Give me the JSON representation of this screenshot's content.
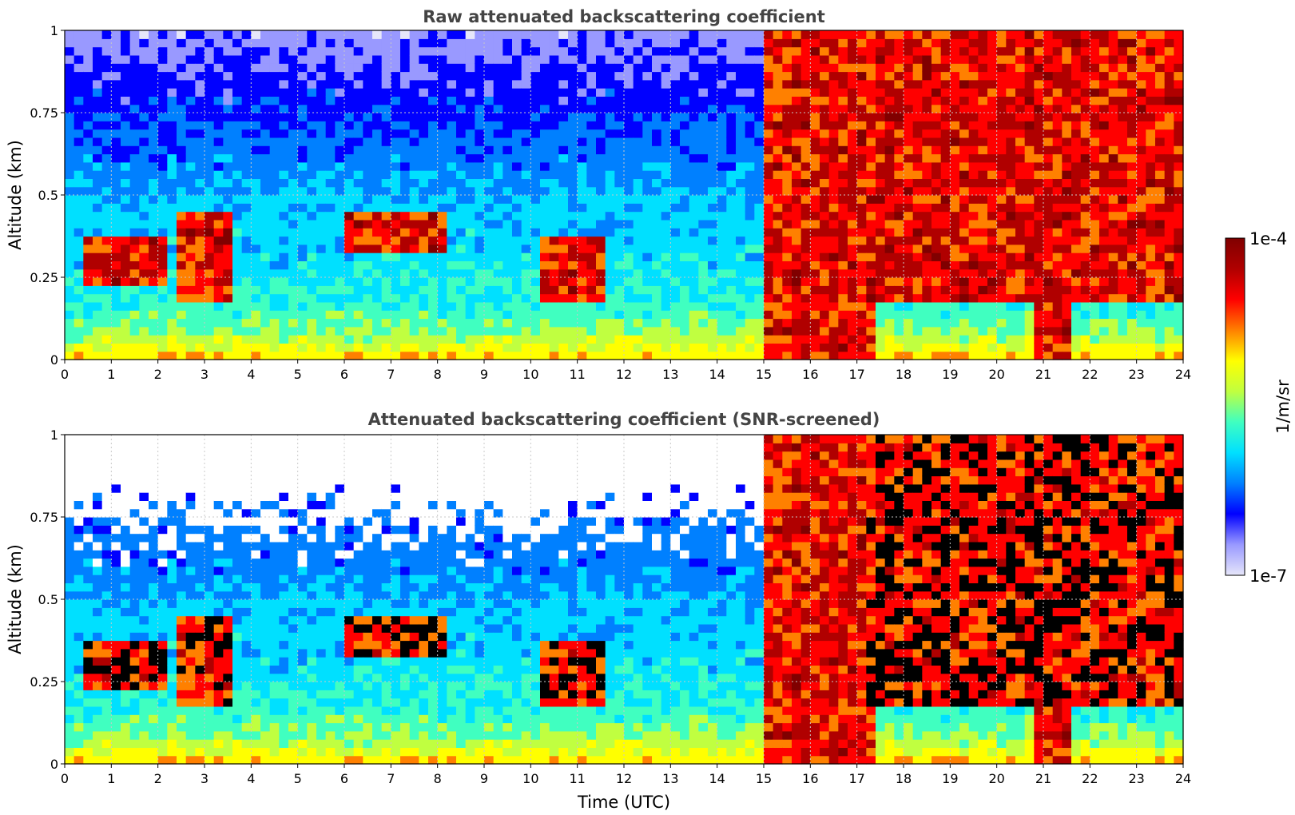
{
  "figure": {
    "xlabel": "Time (UTC)",
    "colorbar_label": "1/m/sr",
    "colorbar_ticks": [
      "1e-4",
      "1e-7"
    ],
    "colormap": [
      "#e6e6fa",
      "#9999ff",
      "#0000ff",
      "#0080ff",
      "#00e0ff",
      "#40ffc0",
      "#c0ff40",
      "#ffff00",
      "#ff8000",
      "#ff0000",
      "#b00000",
      "#800000"
    ]
  },
  "chart_data": [
    {
      "type": "heatmap",
      "title": "Raw attenuated backscattering coefficient",
      "xlabel": "",
      "ylabel": "Altitude (km)",
      "xlim": [
        0,
        24
      ],
      "ylim": [
        0,
        1
      ],
      "xticks": [
        0,
        1,
        2,
        3,
        4,
        5,
        6,
        7,
        8,
        9,
        10,
        11,
        12,
        13,
        14,
        15,
        16,
        17,
        18,
        19,
        20,
        21,
        22,
        23,
        24
      ],
      "yticks": [
        0,
        0.25,
        0.5,
        0.75,
        1
      ],
      "ytick_labels": [
        "0",
        "0.25",
        "0.5",
        "0.75",
        "1"
      ],
      "grid": true,
      "colorscale": "log",
      "clim": [
        "1e-7",
        "1e-4"
      ],
      "features": [
        {
          "x": [
            0.5,
            2.1
          ],
          "y": [
            0.22,
            0.38
          ],
          "level": "high"
        },
        {
          "x": [
            2.5,
            3.5
          ],
          "y": [
            0.18,
            0.45
          ],
          "level": "high"
        },
        {
          "x": [
            6.0,
            8.2
          ],
          "y": [
            0.32,
            0.45
          ],
          "level": "high"
        },
        {
          "x": [
            10.2,
            11.5
          ],
          "y": [
            0.18,
            0.38
          ],
          "level": "high"
        },
        {
          "x": [
            15.1,
            17.3
          ],
          "y": [
            0.0,
            1.0
          ],
          "level": "high"
        },
        {
          "x": [
            17.3,
            24.0
          ],
          "y": [
            0.18,
            1.0
          ],
          "level": "high"
        },
        {
          "x": [
            20.9,
            21.6
          ],
          "y": [
            0.0,
            0.6
          ],
          "level": "high"
        }
      ]
    },
    {
      "type": "heatmap",
      "title": "Attenuated backscattering coefficient (SNR-screened)",
      "xlabel": "Time (UTC)",
      "ylabel": "Altitude (km)",
      "xlim": [
        0,
        24
      ],
      "ylim": [
        0,
        1
      ],
      "xticks": [
        0,
        1,
        2,
        3,
        4,
        5,
        6,
        7,
        8,
        9,
        10,
        11,
        12,
        13,
        14,
        15,
        16,
        17,
        18,
        19,
        20,
        21,
        22,
        23,
        24
      ],
      "yticks": [
        0,
        0.25,
        0.5,
        0.75,
        1
      ],
      "ytick_labels": [
        "0",
        "0.25",
        "0.5",
        "0.75",
        "1"
      ],
      "grid": true,
      "colorscale": "log",
      "clim": [
        "1e-7",
        "1e-4"
      ],
      "features": [
        {
          "x": [
            0.5,
            2.1
          ],
          "y": [
            0.22,
            0.38
          ],
          "level": "saturated"
        },
        {
          "x": [
            2.5,
            3.5
          ],
          "y": [
            0.18,
            0.45
          ],
          "level": "saturated"
        },
        {
          "x": [
            6.0,
            8.2
          ],
          "y": [
            0.32,
            0.45
          ],
          "level": "saturated"
        },
        {
          "x": [
            10.2,
            11.5
          ],
          "y": [
            0.18,
            0.38
          ],
          "level": "saturated"
        },
        {
          "x": [
            15.1,
            17.3
          ],
          "y": [
            0.0,
            1.0
          ],
          "level": "high"
        },
        {
          "x": [
            17.3,
            24.0
          ],
          "y": [
            0.18,
            1.0
          ],
          "level": "saturated"
        },
        {
          "x": [
            20.9,
            21.6
          ],
          "y": [
            0.0,
            0.6
          ],
          "level": "high"
        }
      ]
    }
  ]
}
